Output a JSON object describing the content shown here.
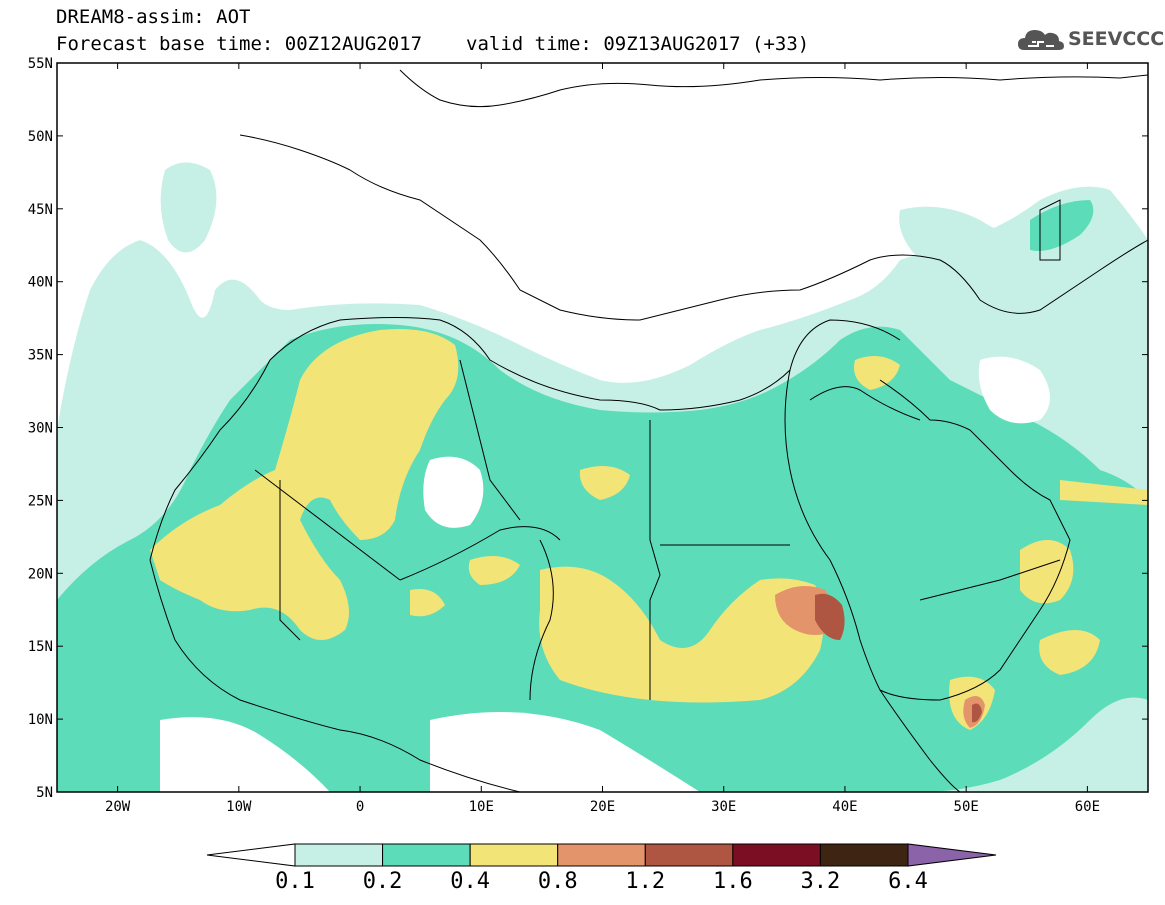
{
  "header": {
    "model_title": "DREAM8-assim: AOT",
    "forecast_base": "Forecast base time: 00Z12AUG2017",
    "valid_time": "valid time: 09Z13AUG2017 (+33)"
  },
  "logo": {
    "text": "SEEVCCC",
    "icon": "cloud-icon"
  },
  "map": {
    "projection": "lat-lon",
    "lon_range": [
      -25,
      65
    ],
    "lat_range": [
      5,
      55
    ],
    "lat_ticks": [
      "5N",
      "10N",
      "15N",
      "20N",
      "25N",
      "30N",
      "35N",
      "40N",
      "45N",
      "50N",
      "55N"
    ],
    "lon_ticks": [
      "20W",
      "10W",
      "0",
      "10E",
      "20E",
      "30E",
      "40E",
      "50E",
      "60E"
    ]
  },
  "colorbar": {
    "labels": [
      "0.1",
      "0.2",
      "0.4",
      "0.8",
      "1.2",
      "1.6",
      "3.2",
      "6.4"
    ],
    "colors": [
      "#ffffff",
      "#c6f0e6",
      "#5ddcb9",
      "#f3e477",
      "#e4946a",
      "#ae5642",
      "#7c0e24",
      "#3e2412",
      "#8a63a8"
    ],
    "extend": "both"
  }
}
